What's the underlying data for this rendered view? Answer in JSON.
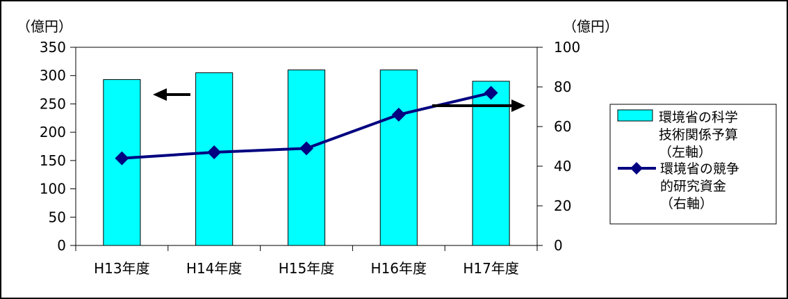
{
  "chart_data": {
    "type": "bar+line",
    "categories": [
      "H13年度",
      "H14年度",
      "H15年度",
      "H16年度",
      "H17年度"
    ],
    "left_axis": {
      "unit": "（億円）",
      "min": 0,
      "max": 350,
      "step": 50
    },
    "right_axis": {
      "unit": "（億円）",
      "min": 0,
      "max": 100,
      "step": 20
    },
    "series": [
      {
        "name_lines": [
          "環境省の科学",
          "技術関係予算",
          "（左軸）"
        ],
        "type": "bar",
        "axis": "left",
        "color": "#00FFFF",
        "values": [
          293,
          305,
          310,
          310,
          290
        ]
      },
      {
        "name_lines": [
          "環境省の競争",
          "的研究資金",
          "（右軸）"
        ],
        "type": "line",
        "axis": "right",
        "color": "#000080",
        "values": [
          44,
          47,
          49,
          66,
          77
        ]
      }
    ],
    "annotations": [
      {
        "type": "arrow",
        "direction": "left",
        "points_to_axis": "left"
      },
      {
        "type": "arrow",
        "direction": "right",
        "points_to_axis": "right"
      }
    ],
    "grid": false,
    "legend_position": "right"
  }
}
